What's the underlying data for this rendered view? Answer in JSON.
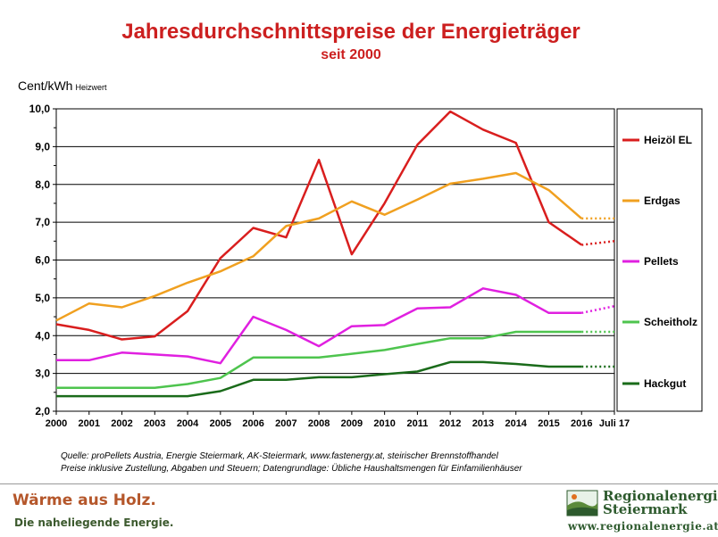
{
  "chart_data": {
    "type": "line",
    "title": "Jahresdurchschnittspreise der Energieträger",
    "subtitle": "seit 2000",
    "ylabel": "Cent/kWh",
    "ylabel_sub": "Heizwert",
    "ylim": [
      2.0,
      10.0
    ],
    "yticks": [
      "2,0",
      "3,0",
      "4,0",
      "5,0",
      "6,0",
      "7,0",
      "8,0",
      "9,0",
      "10,0"
    ],
    "categories": [
      "2000",
      "2001",
      "2002",
      "2003",
      "2004",
      "2005",
      "2006",
      "2007",
      "2008",
      "2009",
      "2010",
      "2011",
      "2012",
      "2013",
      "2014",
      "2015",
      "2016",
      "Juli 17"
    ],
    "grid": true,
    "legend_position": "right",
    "dotted_last_segment": true,
    "series": [
      {
        "name": "Heizöl EL",
        "color": "#d91e1e",
        "values": [
          4.3,
          4.15,
          3.9,
          3.98,
          4.65,
          6.05,
          6.85,
          6.6,
          8.65,
          6.15,
          7.5,
          9.05,
          9.93,
          9.45,
          9.1,
          7.0,
          6.4,
          6.5
        ]
      },
      {
        "name": "Erdgas",
        "color": "#f0a020",
        "values": [
          4.4,
          4.85,
          4.75,
          5.05,
          5.4,
          5.7,
          6.1,
          6.9,
          7.1,
          7.55,
          7.2,
          7.6,
          8.02,
          8.15,
          8.3,
          7.85,
          7.1,
          7.1
        ]
      },
      {
        "name": "Pellets",
        "color": "#e020e0",
        "values": [
          3.35,
          3.35,
          3.55,
          3.5,
          3.45,
          3.27,
          4.5,
          4.15,
          3.72,
          4.25,
          4.28,
          4.72,
          4.75,
          5.25,
          5.08,
          4.6,
          4.6,
          4.78
        ]
      },
      {
        "name": "Scheitholz",
        "color": "#4ec44e",
        "values": [
          2.62,
          2.62,
          2.62,
          2.62,
          2.72,
          2.88,
          3.42,
          3.42,
          3.42,
          3.52,
          3.62,
          3.78,
          3.93,
          3.93,
          4.1,
          4.1,
          4.1,
          4.1
        ]
      },
      {
        "name": "Hackgut",
        "color": "#1a6b1a",
        "values": [
          2.4,
          2.4,
          2.4,
          2.4,
          2.4,
          2.53,
          2.83,
          2.83,
          2.9,
          2.9,
          2.98,
          3.05,
          3.3,
          3.3,
          3.25,
          3.18,
          3.18,
          3.18
        ]
      }
    ]
  },
  "source_line": "Quelle: proPellets Austria, Energie Steiermark, AK-Steiermark, www.fastenergy.at, steirischer Brennstoffhandel",
  "source_line2": "Preise inklusive Zustellung, Abgaben und Steuern; Datengrundlage: Übliche Haushaltsmengen für Einfamilienhäuser",
  "footer": {
    "left_brand": "Wärme aus Holz.",
    "left_tagline": "Die naheliegende Energie.",
    "right_brand_line1": "Regionalenergie",
    "right_brand_line2": "Steiermark",
    "right_url": "www.regionalenergie.at"
  }
}
